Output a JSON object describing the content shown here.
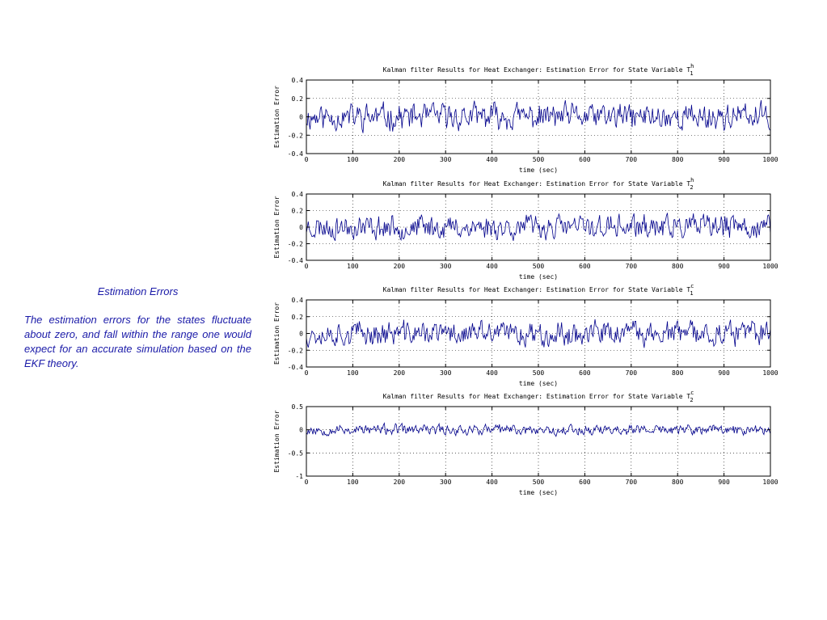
{
  "side_panel": {
    "title": "Estimation Errors",
    "body": "The estimation errors for the states fluctuate about zero, and fall within the range one would expect for an accurate simulation based on the EKF theory."
  },
  "colors": {
    "series": "#00008b",
    "grid": "#000000",
    "text": "#1a1aa8"
  },
  "chart_data": [
    {
      "type": "line",
      "title": "Kalman filter Results for Heat Exchanger: Estimation Error for State Variable T",
      "title_sup": "h",
      "title_sub": "1",
      "xlabel": "time (sec)",
      "ylabel": "Estimation Error",
      "xlim": [
        0,
        1000
      ],
      "ylim": [
        -0.4,
        0.4
      ],
      "xticks": [
        0,
        100,
        200,
        300,
        400,
        500,
        600,
        700,
        800,
        900,
        1000
      ],
      "yticks": [
        -0.4,
        -0.2,
        0,
        0.2,
        0.4
      ],
      "ytick_labels": [
        "-0.4",
        "-0.2",
        "0",
        "0.2",
        "0.4"
      ],
      "grid": true,
      "series": [
        {
          "amplitude": 0.1,
          "clip": 0.22,
          "seed": 11
        }
      ]
    },
    {
      "type": "line",
      "title": "Kalman filter Results for Heat Exchanger: Estimation Error for State Variable T",
      "title_sup": "h",
      "title_sub": "2",
      "xlabel": "time (sec)",
      "ylabel": "Estimation Error",
      "xlim": [
        0,
        1000
      ],
      "ylim": [
        -0.4,
        0.4
      ],
      "xticks": [
        0,
        100,
        200,
        300,
        400,
        500,
        600,
        700,
        800,
        900,
        1000
      ],
      "yticks": [
        -0.4,
        -0.2,
        0,
        0.2,
        0.4
      ],
      "ytick_labels": [
        "-0.4",
        "-0.2",
        "0",
        "0.2",
        "0.4"
      ],
      "grid": true,
      "series": [
        {
          "amplitude": 0.1,
          "clip": 0.25,
          "seed": 23
        }
      ]
    },
    {
      "type": "line",
      "title": "Kalman filter Results for Heat Exchanger: Estimation Error for State Variable T",
      "title_sup": "c",
      "title_sub": "1",
      "xlabel": "time (sec)",
      "ylabel": "Estimation Error",
      "xlim": [
        0,
        1000
      ],
      "ylim": [
        -0.4,
        0.4
      ],
      "xticks": [
        0,
        100,
        200,
        300,
        400,
        500,
        600,
        700,
        800,
        900,
        1000
      ],
      "yticks": [
        -0.4,
        -0.2,
        0,
        0.2,
        0.4
      ],
      "ytick_labels": [
        "-0.4",
        "-0.2",
        "0",
        "0.2",
        "0.4"
      ],
      "grid": true,
      "series": [
        {
          "amplitude": 0.1,
          "clip": 0.26,
          "seed": 37
        }
      ]
    },
    {
      "type": "line",
      "title": "Kalman filter Results for Heat Exchanger: Estimation Error for State Variable T",
      "title_sup": "c",
      "title_sub": "2",
      "xlabel": "time (sec)",
      "ylabel": "Estimation Error",
      "xlim": [
        0,
        1000
      ],
      "ylim": [
        -1,
        0.5
      ],
      "xticks": [
        0,
        100,
        200,
        300,
        400,
        500,
        600,
        700,
        800,
        900,
        1000
      ],
      "yticks": [
        -1,
        -0.5,
        0,
        0.5
      ],
      "ytick_labels": [
        "-1",
        "-0.5",
        "0",
        "0.5"
      ],
      "grid": true,
      "series": [
        {
          "amplitude": 0.08,
          "clip": 0.2,
          "seed": 53
        }
      ]
    }
  ]
}
